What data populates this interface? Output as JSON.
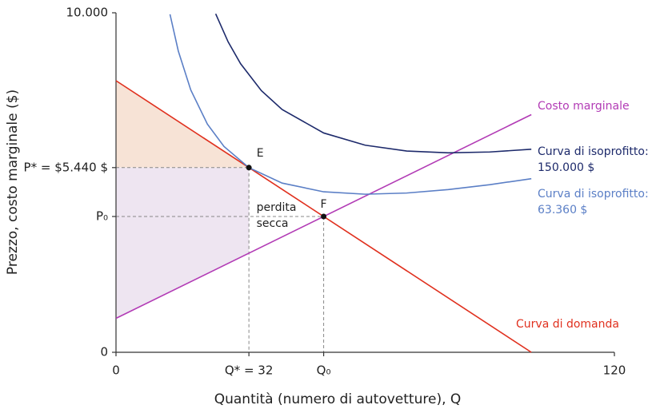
{
  "chart_data": {
    "type": "line",
    "xlabel": "Quantità (numero di autovetture), Q",
    "ylabel": "Prezzo, costo marginale ($)",
    "xlim": [
      0,
      120
    ],
    "ylim": [
      0,
      10000
    ],
    "xticks": [
      0,
      {
        "value": 32,
        "label": "Q* = 32"
      },
      {
        "value": 50,
        "label": "Q₀"
      },
      120
    ],
    "yticks": [
      0,
      {
        "value": 4000,
        "label": "P₀"
      },
      {
        "value": 5440,
        "label": "P* = $5.440 $"
      },
      {
        "value": 10000,
        "label": "10.000"
      }
    ],
    "series": [
      {
        "label": [
          "Curva di domanda"
        ],
        "color": "#e0301e",
        "x": [
          0,
          100
        ],
        "values": [
          8000,
          0
        ]
      },
      {
        "label": [
          "Costo marginale"
        ],
        "color": "#b23bb5",
        "x": [
          0,
          100
        ],
        "values": [
          1000,
          7000
        ]
      },
      {
        "label": [
          "Curva di isoprofitto:",
          "150.000 $"
        ],
        "color": "#1d2a6b",
        "x": [
          24,
          27,
          30,
          35,
          40,
          50,
          60,
          70,
          80,
          90,
          100
        ],
        "values": [
          9970,
          9143,
          8500,
          7707,
          7150,
          6460,
          6100,
          5929,
          5875,
          5900,
          5980
        ]
      },
      {
        "label": [
          "Curva di isoprofitto:",
          "63.360 $"
        ],
        "color": "#5b7fc6",
        "x": [
          13,
          15,
          18,
          22,
          26,
          32,
          40,
          50,
          60,
          70,
          80,
          90,
          100
        ],
        "values": [
          9956,
          8874,
          7727,
          6722,
          6063,
          5440,
          4984,
          4727,
          4656,
          4691,
          4792,
          4937,
          5114
        ]
      }
    ],
    "points": [
      {
        "label": "E",
        "x": 32,
        "y": 5440
      },
      {
        "label": "F",
        "x": 50,
        "y": 4000
      }
    ],
    "annotation": [
      "perdita",
      "secca"
    ]
  }
}
